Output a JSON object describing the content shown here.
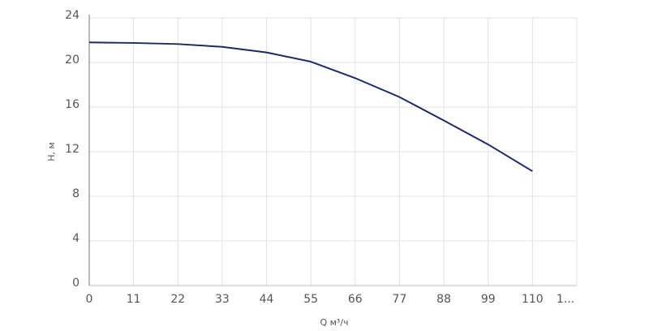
{
  "chart_data": {
    "type": "line",
    "x_label": "Q м³/ч",
    "y_label": "H, м",
    "x": [
      0,
      11,
      22,
      33,
      44,
      55,
      66,
      77,
      88,
      99,
      110
    ],
    "series": [
      {
        "name": "H",
        "color": "#1b2a66",
        "values": [
          21.8,
          21.75,
          21.65,
          21.4,
          20.9,
          20.07,
          18.6,
          16.9,
          14.8,
          12.65,
          10.25
        ]
      }
    ],
    "xlim": [
      0,
      121
    ],
    "xticks": [
      0,
      11,
      22,
      33,
      44,
      55,
      66,
      77,
      88,
      99,
      110,
      {
        "value": 121,
        "label": "1..."
      }
    ],
    "ylim": [
      0,
      24
    ],
    "yticks": [
      0,
      4,
      8,
      12,
      16,
      20,
      24
    ],
    "grid": true
  }
}
